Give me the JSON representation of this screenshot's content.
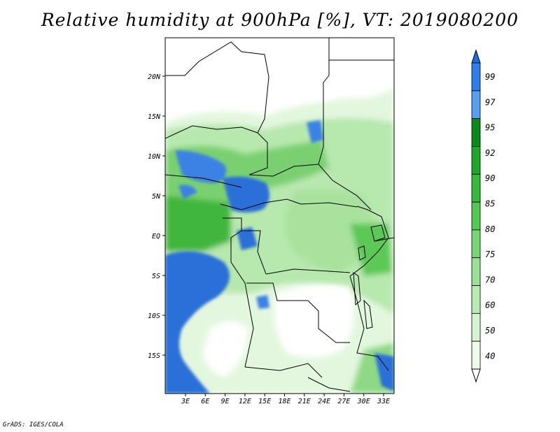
{
  "title": "Relative humidity at 900hPa [%], VT: 2019080200",
  "credit": "GrADS: IGES/COLA",
  "map": {
    "lat_labels": [
      "20N",
      "15N",
      "10N",
      "5N",
      "EQ",
      "5S",
      "10S",
      "15S"
    ],
    "lon_labels": [
      "3E",
      "6E",
      "9E",
      "12E",
      "15E",
      "18E",
      "21E",
      "24E",
      "27E",
      "30E",
      "33E"
    ]
  },
  "colorbar": {
    "levels": [
      "99",
      "97",
      "95",
      "92",
      "90",
      "85",
      "80",
      "75",
      "70",
      "60",
      "50",
      "40"
    ],
    "colors": [
      "#1a6ee0",
      "#2e7de8",
      "#55a0ef",
      "#0a8a1a",
      "#1ea82a",
      "#35bb3c",
      "#52ca52",
      "#76d774",
      "#9ae195",
      "#bbebb5",
      "#d7f4d2",
      "#eefbea",
      "#ffffff"
    ]
  }
}
